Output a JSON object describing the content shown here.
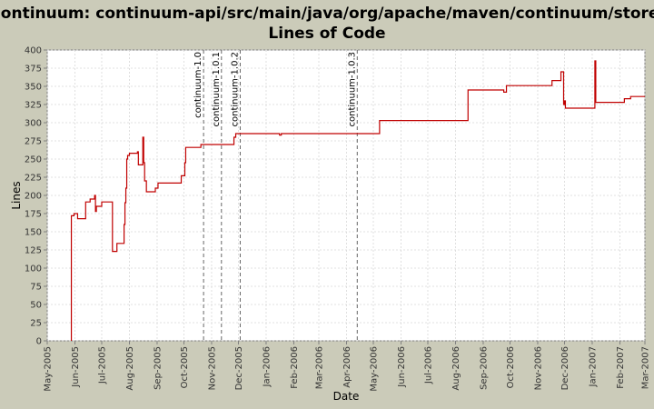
{
  "chart_data": {
    "type": "line",
    "title": "Continuum: continuum-api/src/main/java/org/apache/maven/continuum/store/",
    "subtitle": "Lines of Code",
    "xlabel": "Date",
    "ylabel": "Lines",
    "ylim": [
      0,
      400
    ],
    "yticks": [
      0,
      25,
      50,
      75,
      100,
      125,
      150,
      175,
      200,
      225,
      250,
      275,
      300,
      325,
      350,
      375,
      400
    ],
    "xlim": [
      "2005-05-01",
      "2007-03-01"
    ],
    "xticks": [
      {
        "date": "2005-05-01",
        "label": "May-2005"
      },
      {
        "date": "2005-06-01",
        "label": "Jun-2005"
      },
      {
        "date": "2005-07-01",
        "label": "Jul-2005"
      },
      {
        "date": "2005-08-01",
        "label": "Aug-2005"
      },
      {
        "date": "2005-09-01",
        "label": "Sep-2005"
      },
      {
        "date": "2005-10-01",
        "label": "Oct-2005"
      },
      {
        "date": "2005-11-01",
        "label": "Nov-2005"
      },
      {
        "date": "2005-12-01",
        "label": "Dec-2005"
      },
      {
        "date": "2006-01-01",
        "label": "Jan-2006"
      },
      {
        "date": "2006-02-01",
        "label": "Feb-2006"
      },
      {
        "date": "2006-03-01",
        "label": "Mar-2006"
      },
      {
        "date": "2006-04-01",
        "label": "Apr-2006"
      },
      {
        "date": "2006-05-01",
        "label": "May-2006"
      },
      {
        "date": "2006-06-01",
        "label": "Jun-2006"
      },
      {
        "date": "2006-07-01",
        "label": "Jul-2006"
      },
      {
        "date": "2006-08-01",
        "label": "Aug-2006"
      },
      {
        "date": "2006-09-01",
        "label": "Sep-2006"
      },
      {
        "date": "2006-10-01",
        "label": "Oct-2006"
      },
      {
        "date": "2006-11-01",
        "label": "Nov-2006"
      },
      {
        "date": "2006-12-01",
        "label": "Dec-2006"
      },
      {
        "date": "2007-01-01",
        "label": "Jan-2007"
      },
      {
        "date": "2007-02-01",
        "label": "Feb-2007"
      },
      {
        "date": "2007-03-01",
        "label": "Mar-2007"
      }
    ],
    "grid": true,
    "series_color": "#c00000",
    "markers": [
      {
        "label": "continuum-1.0",
        "date": "2005-10-23"
      },
      {
        "label": "continuum-1.0.1",
        "date": "2005-11-12"
      },
      {
        "label": "continuum-1.0.2",
        "date": "2005-12-03"
      },
      {
        "label": "continuum-1.0.3",
        "date": "2006-04-13"
      }
    ],
    "series": [
      {
        "points": [
          [
            "2005-05-28",
            0
          ],
          [
            "2005-05-28",
            172
          ],
          [
            "2005-05-31",
            172
          ],
          [
            "2005-05-31",
            175
          ],
          [
            "2005-06-04",
            175
          ],
          [
            "2005-06-04",
            168
          ],
          [
            "2005-06-13",
            168
          ],
          [
            "2005-06-13",
            191
          ],
          [
            "2005-06-18",
            191
          ],
          [
            "2005-06-18",
            195
          ],
          [
            "2005-06-23",
            195
          ],
          [
            "2005-06-23",
            200
          ],
          [
            "2005-06-24",
            200
          ],
          [
            "2005-06-24",
            178
          ],
          [
            "2005-06-25",
            178
          ],
          [
            "2005-06-25",
            185
          ],
          [
            "2005-07-01",
            185
          ],
          [
            "2005-07-01",
            191
          ],
          [
            "2005-07-13",
            191
          ],
          [
            "2005-07-13",
            123
          ],
          [
            "2005-07-18",
            123
          ],
          [
            "2005-07-18",
            134
          ],
          [
            "2005-07-26",
            134
          ],
          [
            "2005-07-26",
            160
          ],
          [
            "2005-07-27",
            160
          ],
          [
            "2005-07-27",
            190
          ],
          [
            "2005-07-28",
            190
          ],
          [
            "2005-07-28",
            210
          ],
          [
            "2005-07-29",
            210
          ],
          [
            "2005-07-29",
            250
          ],
          [
            "2005-07-30",
            250
          ],
          [
            "2005-07-30",
            255
          ],
          [
            "2005-08-01",
            255
          ],
          [
            "2005-08-01",
            258
          ],
          [
            "2005-08-10",
            258
          ],
          [
            "2005-08-10",
            260
          ],
          [
            "2005-08-11",
            260
          ],
          [
            "2005-08-11",
            242
          ],
          [
            "2005-08-16",
            242
          ],
          [
            "2005-08-16",
            280
          ],
          [
            "2005-08-17",
            280
          ],
          [
            "2005-08-17",
            245
          ],
          [
            "2005-08-18",
            245
          ],
          [
            "2005-08-18",
            220
          ],
          [
            "2005-08-20",
            220
          ],
          [
            "2005-08-20",
            205
          ],
          [
            "2005-08-30",
            205
          ],
          [
            "2005-08-30",
            210
          ],
          [
            "2005-09-02",
            210
          ],
          [
            "2005-09-02",
            217
          ],
          [
            "2005-09-28",
            217
          ],
          [
            "2005-09-28",
            227
          ],
          [
            "2005-10-02",
            227
          ],
          [
            "2005-10-02",
            245
          ],
          [
            "2005-10-03",
            245
          ],
          [
            "2005-10-03",
            266
          ],
          [
            "2005-10-20",
            266
          ],
          [
            "2005-10-20",
            270
          ],
          [
            "2005-11-26",
            270
          ],
          [
            "2005-11-26",
            280
          ],
          [
            "2005-11-28",
            280
          ],
          [
            "2005-11-28",
            285
          ],
          [
            "2006-01-16",
            285
          ],
          [
            "2006-01-16",
            283
          ],
          [
            "2006-01-18",
            283
          ],
          [
            "2006-01-18",
            285
          ],
          [
            "2006-05-08",
            285
          ],
          [
            "2006-05-08",
            303
          ],
          [
            "2006-08-15",
            303
          ],
          [
            "2006-08-15",
            345
          ],
          [
            "2006-09-24",
            345
          ],
          [
            "2006-09-24",
            342
          ],
          [
            "2006-09-27",
            342
          ],
          [
            "2006-09-27",
            351
          ],
          [
            "2006-11-17",
            351
          ],
          [
            "2006-11-17",
            358
          ],
          [
            "2006-11-27",
            358
          ],
          [
            "2006-11-27",
            370
          ],
          [
            "2006-11-30",
            370
          ],
          [
            "2006-11-30",
            325
          ],
          [
            "2006-12-01",
            325
          ],
          [
            "2006-12-01",
            330
          ],
          [
            "2006-12-02",
            330
          ],
          [
            "2006-12-02",
            320
          ],
          [
            "2007-01-04",
            320
          ],
          [
            "2007-01-04",
            385
          ],
          [
            "2007-01-05",
            385
          ],
          [
            "2007-01-05",
            328
          ],
          [
            "2007-02-06",
            328
          ],
          [
            "2007-02-06",
            333
          ],
          [
            "2007-02-13",
            333
          ],
          [
            "2007-02-13",
            336
          ],
          [
            "2007-03-01",
            336
          ]
        ]
      }
    ]
  }
}
